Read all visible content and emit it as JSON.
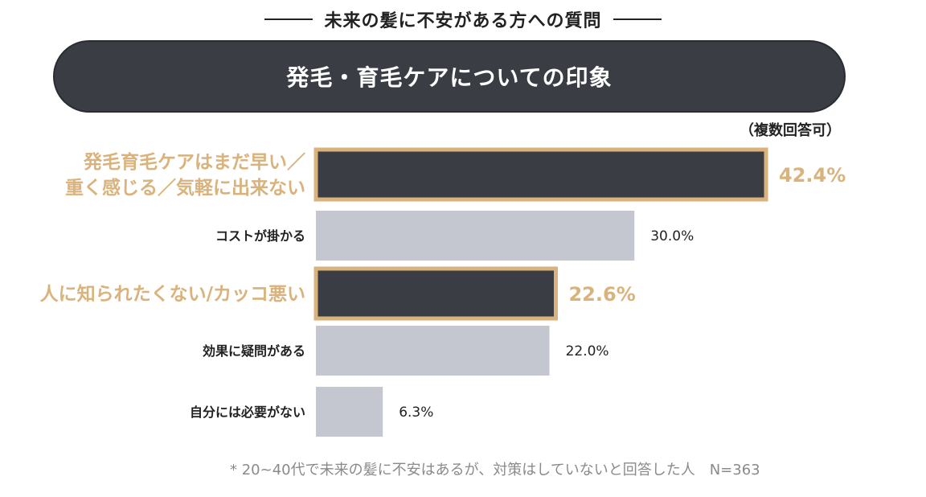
{
  "header": {
    "title": "未来の髪に不安がある方への質問"
  },
  "banner": {
    "title": "発毛・育毛ケアについての印象"
  },
  "note": "（複数回答可）",
  "colors": {
    "banner": "#3a3d44",
    "bar_highlight": "#3a3d44",
    "bar_normal": "#c5c7d0",
    "accent_gold": "#d9b27c",
    "label_dark": "#222222"
  },
  "chart_data": {
    "type": "bar",
    "orientation": "horizontal",
    "categories": [
      [
        "発毛育毛ケアはまだ早い／",
        "重く感じる／気軽に出来ない"
      ],
      [
        "コストが掛かる"
      ],
      [
        "人に知られたくない/カッコ悪い"
      ],
      [
        "効果に疑問がある"
      ],
      [
        "自分には必要がない"
      ]
    ],
    "values": [
      42.4,
      30.0,
      22.6,
      22.0,
      6.3
    ],
    "value_labels": [
      "42.4%",
      "30.0%",
      "22.6%",
      "22.0%",
      "6.3%"
    ],
    "highlighted": [
      true,
      false,
      true,
      false,
      false
    ],
    "xlim": [
      0,
      43
    ],
    "grid": false,
    "legend": "none"
  },
  "footnote": "* 20~40代で未来の髪に不安はあるが、対策はしていないと回答した人　N=363"
}
